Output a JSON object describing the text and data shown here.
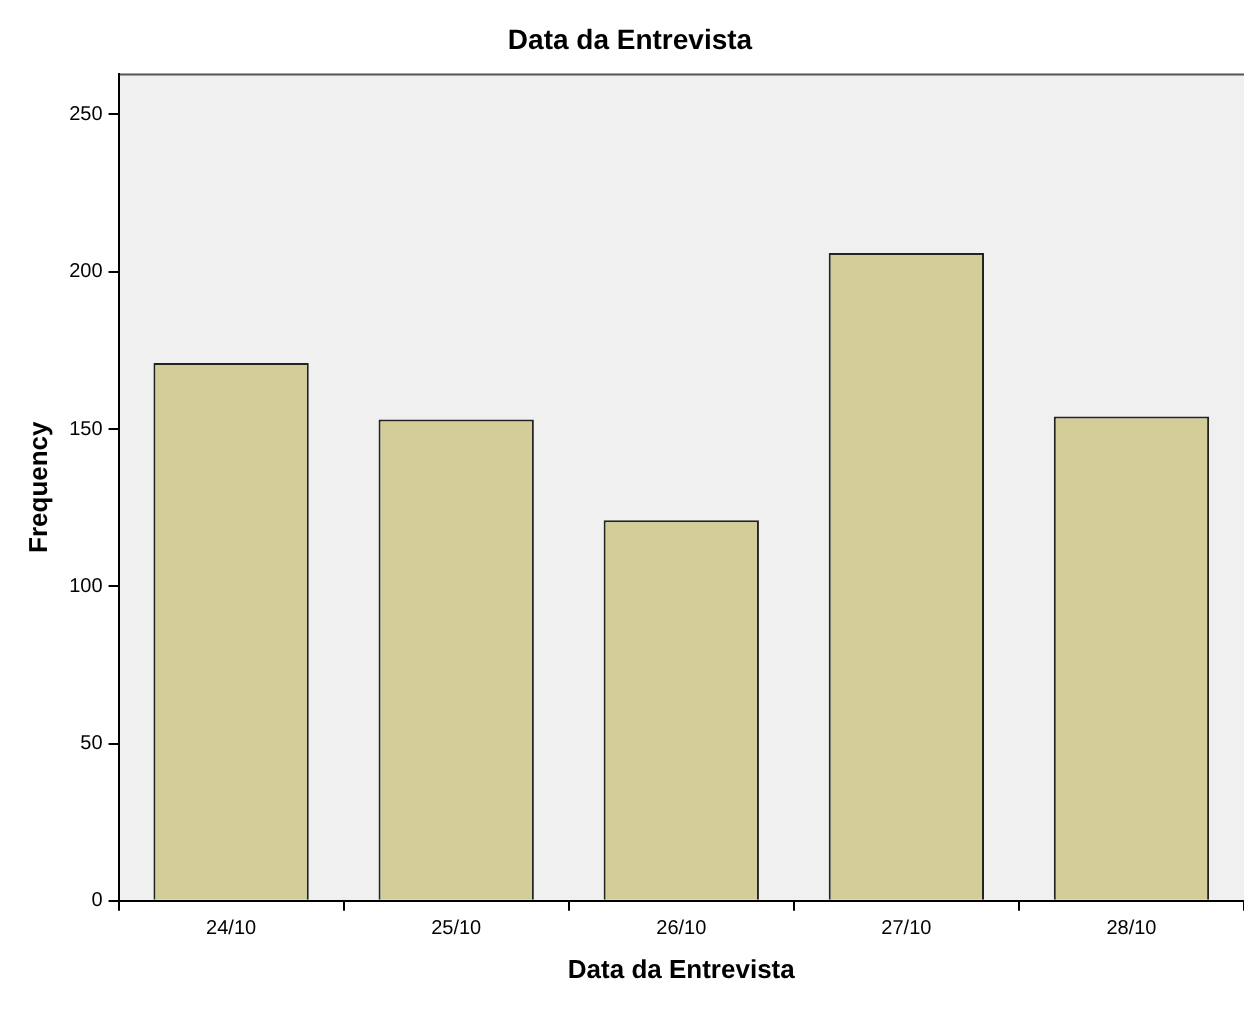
{
  "chart_data": {
    "type": "bar",
    "title": "Data da Entrevista",
    "xlabel": "Data da Entrevista",
    "ylabel": "Frequency",
    "categories": [
      "24/10",
      "25/10",
      "26/10",
      "27/10",
      "28/10"
    ],
    "values": [
      171,
      153,
      121,
      206,
      154
    ],
    "color": "#d3ce97",
    "ylim": [
      0,
      263
    ],
    "yticks": [
      0,
      50,
      100,
      150,
      200,
      250
    ],
    "grid": false,
    "legend": false
  }
}
